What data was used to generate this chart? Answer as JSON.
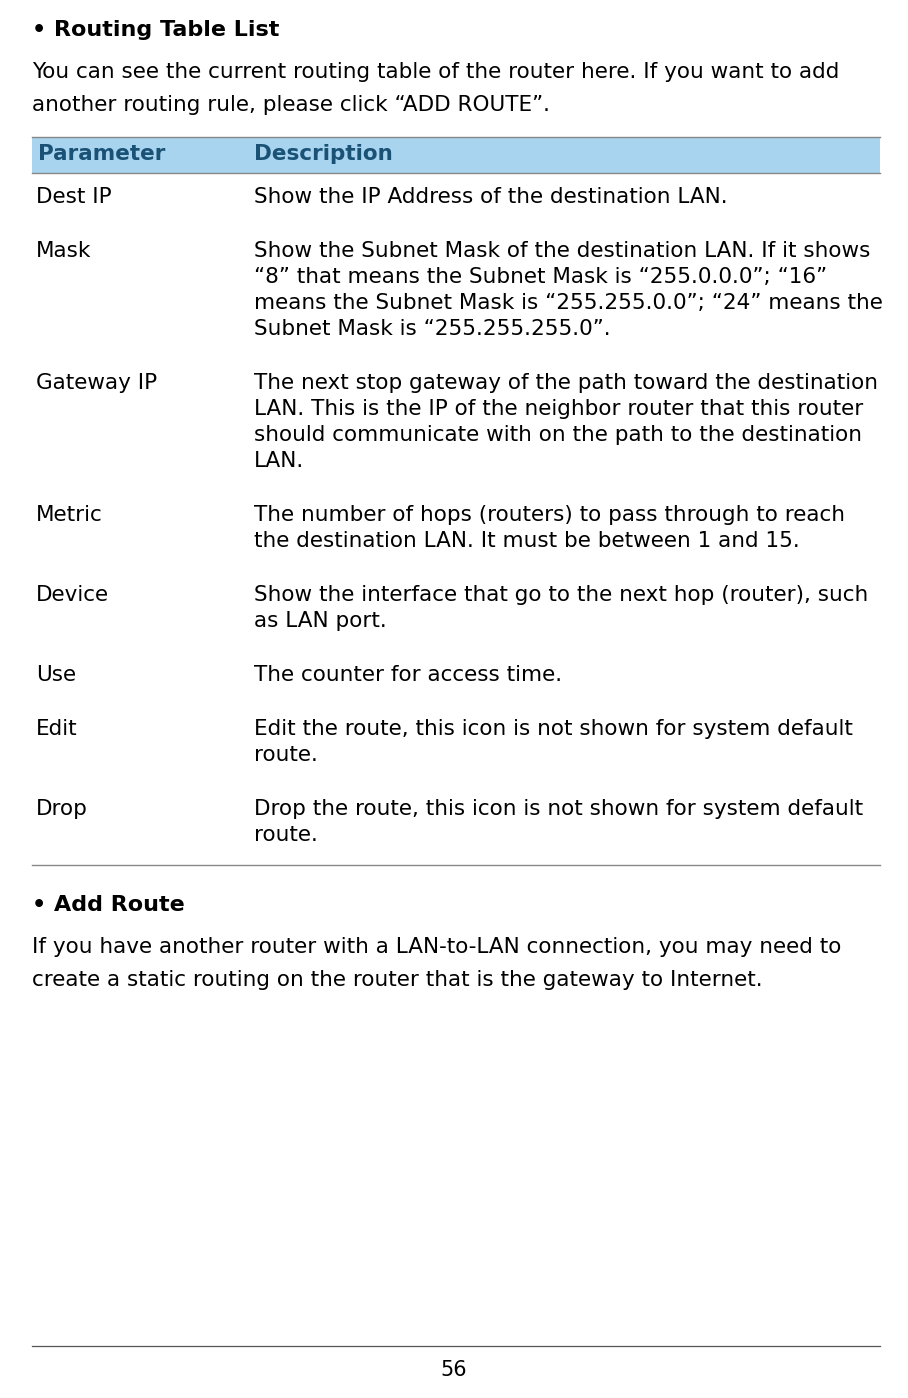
{
  "bg_color": "#ffffff",
  "header_bg": "#a8d4f0",
  "header_text_color": "#1a5276",
  "table_line_color": "#888888",
  "bullet_title1": "Routing Table List",
  "intro_text1": "You can see the current routing table of the router here. If you want to add",
  "intro_text2": "another routing rule, please click “ADD ROUTE”.",
  "header_col1": "Parameter",
  "header_col2": "Description",
  "rows": [
    {
      "param": "Dest IP",
      "desc_lines": [
        "Show the IP Address of the destination LAN."
      ]
    },
    {
      "param": "Mask",
      "desc_lines": [
        "Show the Subnet Mask of the destination LAN. If it shows",
        "“8” that means the Subnet Mask is “255.0.0.0”; “16”",
        "means the Subnet Mask is “255.255.0.0”; “24” means the",
        "Subnet Mask is “255.255.255.0”."
      ]
    },
    {
      "param": "Gateway IP",
      "desc_lines": [
        "The next stop gateway of the path toward the destination",
        "LAN. This is the IP of the neighbor router that this router",
        "should communicate with on the path to the destination",
        "LAN."
      ]
    },
    {
      "param": "Metric",
      "desc_lines": [
        "The number of hops (routers) to pass through to reach",
        "the destination LAN. It must be between 1 and 15."
      ]
    },
    {
      "param": "Device",
      "desc_lines": [
        "Show the interface that go to the next hop (router), such",
        "as LAN port."
      ]
    },
    {
      "param": "Use",
      "desc_lines": [
        "The counter for access time."
      ]
    },
    {
      "param": "Edit",
      "desc_lines": [
        "Edit the route, this icon is not shown for system default",
        "route."
      ]
    },
    {
      "param": "Drop",
      "desc_lines": [
        "Drop the route, this icon is not shown for system default",
        "route."
      ]
    }
  ],
  "bullet_title2": "Add Route",
  "footer_text1": "If you have another router with a LAN-to-LAN connection, you may need to",
  "footer_text2": "create a static routing on the router that is the gateway to Internet.",
  "page_number": "56"
}
